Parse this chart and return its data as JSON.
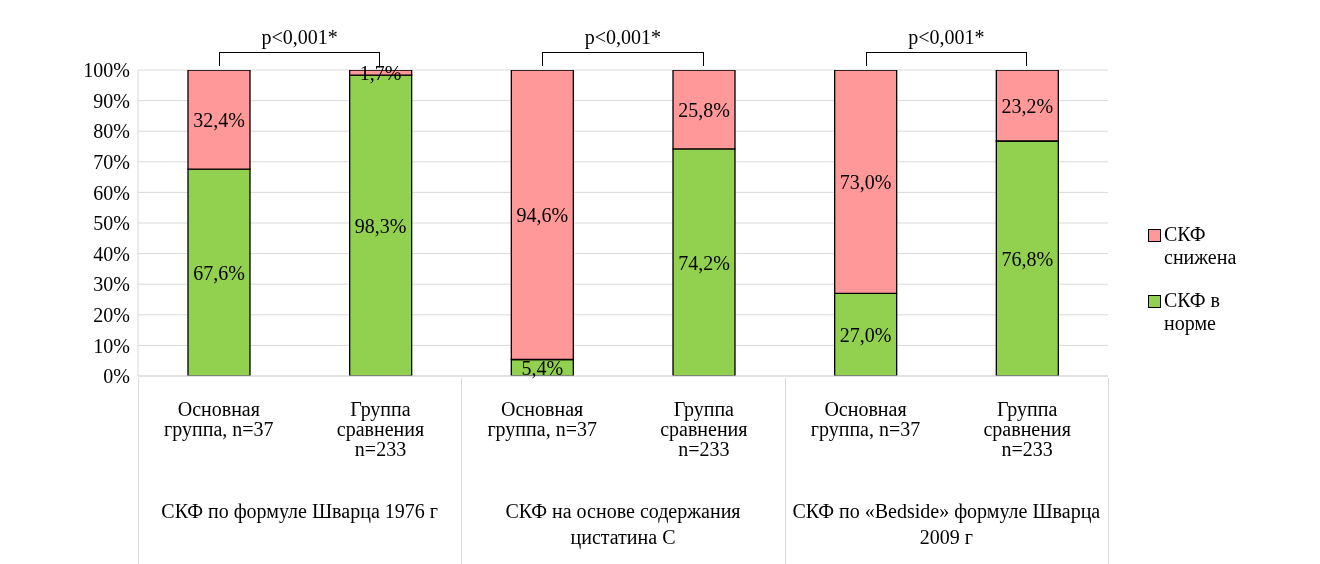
{
  "chart_data": {
    "type": "bar",
    "stacked": true,
    "categories": [
      "Основная группа, n=37",
      "Группа сравнения n=233",
      "Основная группа, n=37",
      "Группа сравнения n=233",
      "Основная группа, n=37",
      "Группа сравнения n=233"
    ],
    "series": [
      {
        "name": "СКФ в норме",
        "color": "#92d050",
        "values": [
          67.6,
          98.3,
          5.4,
          74.2,
          27.0,
          76.8
        ],
        "value_labels": [
          "67,6%",
          "98,3%",
          "5,4%",
          "74,2%",
          "27,0%",
          "76,8%"
        ]
      },
      {
        "name": "СКФ снижена",
        "color": "#ff9999",
        "values": [
          32.4,
          1.7,
          94.6,
          25.8,
          73.0,
          23.2
        ],
        "value_labels": [
          "32,4%",
          "1,7%",
          "94,6%",
          "25,8%",
          "73,0%",
          "23,2%"
        ]
      }
    ],
    "ylim": [
      0,
      100
    ],
    "yticks": [
      {
        "value": 0,
        "label": "0%"
      },
      {
        "value": 10,
        "label": "10%"
      },
      {
        "value": 20,
        "label": "20%"
      },
      {
        "value": 30,
        "label": "30%"
      },
      {
        "value": 40,
        "label": "40%"
      },
      {
        "value": 50,
        "label": "50%"
      },
      {
        "value": 60,
        "label": "60%"
      },
      {
        "value": 70,
        "label": "70%"
      },
      {
        "value": 80,
        "label": "80%"
      },
      {
        "value": 90,
        "label": "90%"
      },
      {
        "value": 100,
        "label": "100%"
      }
    ],
    "grid": "y",
    "legend": "right",
    "annotations": [
      "p<0,001*",
      "p<0,001*",
      "p<0,001*",
      "СКФ по формуле Шварца 1976 г",
      "СКФ на основе содержания цистатина С",
      "СКФ по «Bedside»  формуле Шварца 2009 г"
    ]
  }
}
